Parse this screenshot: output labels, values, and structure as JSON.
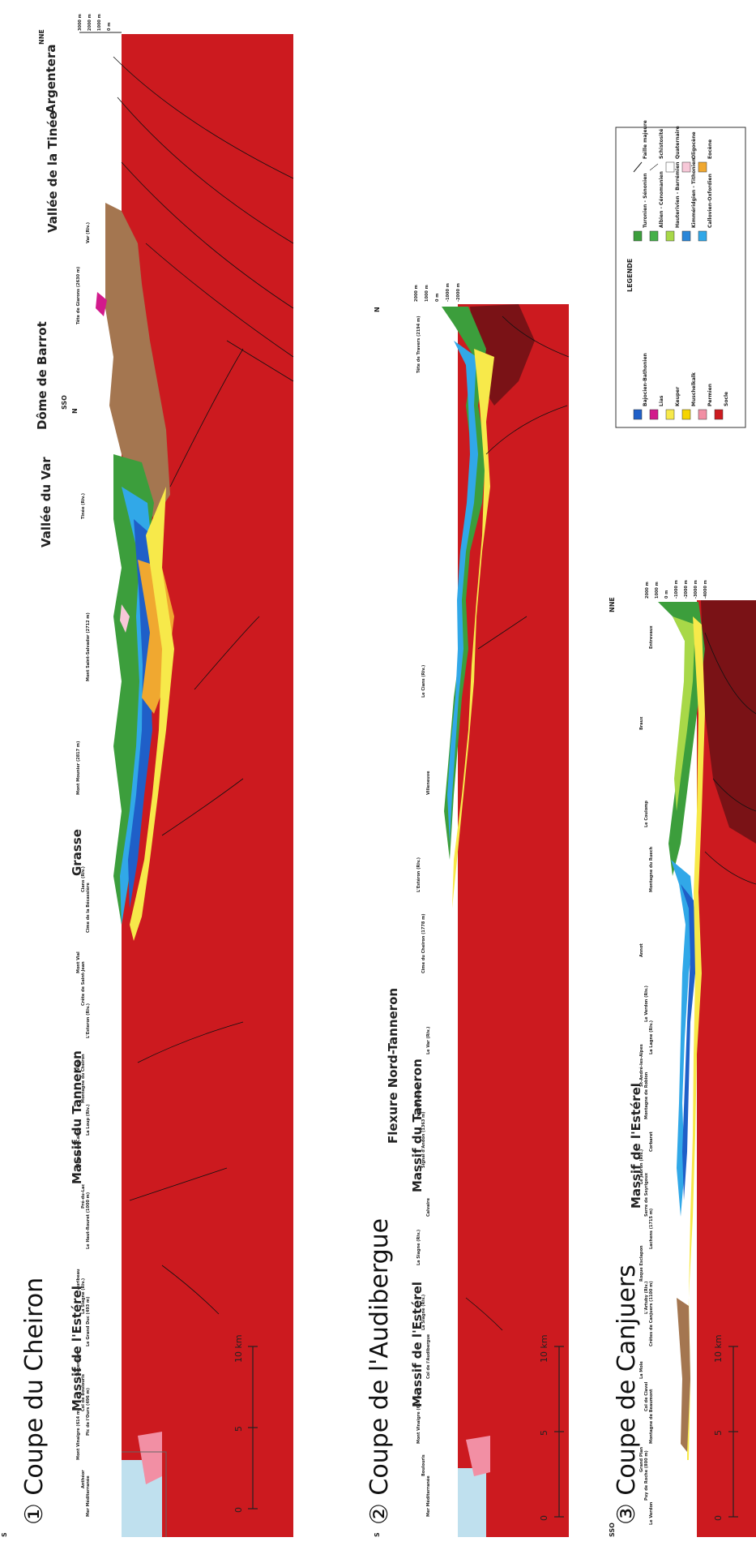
{
  "colors": {
    "socle": "#cc1a1f",
    "socle_dark": "#7a1216",
    "permien": "#f28fa4",
    "muschelkalk": "#f5d400",
    "keuper": "#f7e94a",
    "lias": "#d21a8c",
    "bajocien": "#1f5fc8",
    "callovien": "#31a8e8",
    "kimmeridgien": "#2a86d8",
    "valanginien": "#a8d848",
    "hauterivien": "#3c9e3c",
    "albien": "#46b04a",
    "turonien": "#2e8a2e",
    "eocene": "#f0a830",
    "oligocene": "#f7c8d8",
    "miocene": "#a47650",
    "quaternaire": "#ffffff",
    "sea": "#bfe0ee"
  },
  "legend": {
    "title": "LEGENDE",
    "items": [
      {
        "label": "Bajocien-Bathonien",
        "color": "#1f5fc8"
      },
      {
        "label": "Lias",
        "color": "#d21a8c"
      },
      {
        "label": "Keuper",
        "color": "#f7e94a"
      },
      {
        "label": "Muschelkalk",
        "color": "#f5d400"
      },
      {
        "label": "Permien",
        "color": "#f28fa4"
      },
      {
        "label": "Socle",
        "color": "#cc1a1f"
      },
      {
        "label": "Turonien - Sénonien",
        "color": "#3c9e3c"
      },
      {
        "label": "Albien - Cénomanien",
        "color": "#46b04a"
      },
      {
        "label": "Hauterivien - Barrémien",
        "color": "#a8d848"
      },
      {
        "label": "Kimméridgien - Tithonien",
        "color": "#2a86d8"
      },
      {
        "label": "Callovien-Oxfordien",
        "color": "#31a8e8"
      },
      {
        "label": "Faille majeure",
        "color": "line"
      },
      {
        "label": "Schistosité",
        "color": "hatch"
      },
      {
        "label": "Quaternaire",
        "color": "#ffffff"
      },
      {
        "label": "Oligocène",
        "color": "#f7c8d8"
      },
      {
        "label": "Eocène",
        "color": "#f0a830"
      }
    ]
  },
  "sections": [
    {
      "title": "① Coupe du Cheiron",
      "scale_labels": [
        "0",
        "5",
        "10 km"
      ],
      "elevations": [
        "3000 m",
        "2000 m",
        "1000 m",
        "0 m"
      ],
      "directions": [
        "S",
        "NNE",
        "N",
        "SSO"
      ],
      "regions": [
        "Massif de l'Estérel",
        "Massif du Tanneron",
        "Grasse",
        "Vallée du Var",
        "Dôme de Barrot",
        "Vallée de la Tinée",
        "Argentera"
      ],
      "peaks": [
        "Mer Méditerranée",
        "Anthéor",
        "Mont Vinaigre (614 m)",
        "Pic de l'Ours (496 m)",
        "Col de Boulouris",
        "L'Argentière",
        "Le Grand Duc (493 m)",
        "La Siagne (Riv.)",
        "Auribeau",
        "Le Haut-Rouret (1000 m)",
        "Pré-du-Lac",
        "Plateau de Calern",
        "La Loup (Riv.)",
        "Montagne du Cheiron",
        "Vège",
        "L'Esteron (Riv.)",
        "Crête de Saint-Jean",
        "Mont Vial",
        "Cime de la Bécassière",
        "Cians (Riv.)",
        "Mont Mounier (2817 m)",
        "Mont Saint-Salvador (2712 m)",
        "Tinée (Riv.)",
        "Tête de Giarons (2630 m)",
        "Var (Riv.)"
      ]
    },
    {
      "title": "② Coupe de l'Audibergue",
      "scale_labels": [
        "0",
        "5",
        "10 km"
      ],
      "elevations": [
        "2000 m",
        "1000 m",
        "0 m",
        "-1000 m",
        "-2000 m"
      ],
      "directions": [
        "S",
        "N"
      ],
      "regions": [
        "Massif de l'Estérel",
        "Massif du Tanneron",
        "Flexure Nord-Tanneron"
      ],
      "peaks": [
        "Mer Méditerranée",
        "Boulouris",
        "Mont Vinaigre (614 m)",
        "Col de l'Audibergue",
        "La Siagne (Riv.)",
        "La Siagne (Riv.)",
        "Calvaire",
        "Signal d'Andon (1363 m)",
        "Puget-Théniers",
        "Le Var (Riv.)",
        "Cime du Cheiron (1778 m)",
        "L'Estéron (Riv.)",
        "Villeneuve",
        "Le Cians (Riv.)",
        "Tête de Travers (2194 m)"
      ]
    },
    {
      "title": "③ Coupe de Canjuers",
      "scale_labels": [
        "0",
        "5",
        "10 km"
      ],
      "elevations": [
        "2000 m",
        "1000 m",
        "0 m",
        "-1000 m",
        "-2000 m",
        "-3000 m",
        "-4000 m"
      ],
      "directions": [
        "SSO",
        "NNE"
      ],
      "regions": [
        "Massif de l'Estérel"
      ],
      "peaks": [
        "Le Verdon",
        "Puy de Roche (800 m)",
        "Grand Plan",
        "Montagne de Beaumont",
        "Col de Clavel",
        "La Mole",
        "Crêtes de Canjuers (1100 m)",
        "L'Artuby (Riv.)",
        "Roque Esclapon",
        "Lachens (1715 m)",
        "Serre de Seyrigoux",
        "Le Jabron (Riv.)",
        "Corbaret",
        "Montagne de Robion",
        "St-André-les-Alpes",
        "La Lagne (Riv.)",
        "Le Verdon (Riv.)",
        "Annot",
        "Montagne du Ruech",
        "Le Coulomp",
        "Braux",
        "Entrevaux"
      ]
    }
  ]
}
